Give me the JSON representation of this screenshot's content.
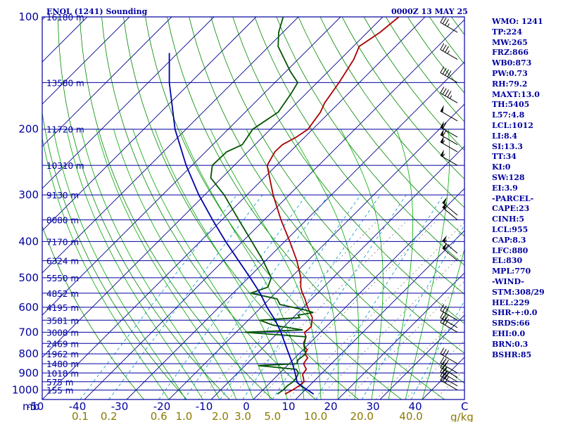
{
  "header": {
    "station": "ENOL (1241) Sounding",
    "time": "0000Z 13 MAY 25"
  },
  "indices": [
    "WMO: 1241",
    "TP:224",
    "MW:265",
    "FRZ:866",
    "WB0:873",
    "PW:0.73",
    "RH:79.2",
    "MAXT:13.0",
    "TH:5405",
    "L57:4.8",
    "LCL:1012",
    "LI:8.4",
    "SI:13.3",
    "TT:34",
    "KI:0",
    "SW:128",
    "EI:3.9",
    "-PARCEL-",
    "CAPE:23",
    "CINH:5",
    "LCL:955",
    "CAP:8.3",
    "LFC:880",
    "EL:830",
    "MPL:770",
    "-WIND-",
    "STM:308/29",
    "HEL:229",
    "SHR-+:0.0",
    "SRDS:66",
    "EHI:0.0",
    "BRN:0.3",
    "BSHR:85"
  ],
  "chart_data": {
    "type": "line",
    "title": "ENOL (1241) Sounding",
    "subtitle": "0000Z 13 MAY 25",
    "x_unit_label": "C",
    "y_unit_label": "mb",
    "mixing_unit_label": "g/kg",
    "pressure_ticks": [
      {
        "p": 100,
        "label": "100"
      },
      {
        "p": 200,
        "label": "200"
      },
      {
        "p": 300,
        "label": "300"
      },
      {
        "p": 400,
        "label": "400"
      },
      {
        "p": 500,
        "label": "500"
      },
      {
        "p": 600,
        "label": "600"
      },
      {
        "p": 700,
        "label": "700"
      },
      {
        "p": 800,
        "label": "800"
      },
      {
        "p": 900,
        "label": "900"
      },
      {
        "p": 1000,
        "label": "1000"
      }
    ],
    "height_labels": [
      {
        "label": "16180 m",
        "p": 100
      },
      {
        "label": "13580 m",
        "p": 150
      },
      {
        "label": "11720 m",
        "p": 200
      },
      {
        "label": "10310 m",
        "p": 250
      },
      {
        "label": "9130 m",
        "p": 300
      },
      {
        "label": "8080 m",
        "p": 350
      },
      {
        "label": "7170 m",
        "p": 400
      },
      {
        "label": "6324 m",
        "p": 450
      },
      {
        "label": "5550 m",
        "p": 500
      },
      {
        "label": "4852 m",
        "p": 550
      },
      {
        "label": "4195 m",
        "p": 600
      },
      {
        "label": "3581 m",
        "p": 650
      },
      {
        "label": "3008 m",
        "p": 700
      },
      {
        "label": "2469 m",
        "p": 750
      },
      {
        "label": "1962 m",
        "p": 800
      },
      {
        "label": "1480 m",
        "p": 850
      },
      {
        "label": "1018 m",
        "p": 900
      },
      {
        "label": "575 m",
        "p": 950
      },
      {
        "label": "155 m",
        "p": 1000
      }
    ],
    "temp_ticks": [
      "-50",
      "-40",
      "-30",
      "-20",
      "-10",
      "0",
      "10",
      "20",
      "30",
      "40"
    ],
    "temp_values": [
      -50,
      -40,
      -30,
      -20,
      -10,
      0,
      10,
      20,
      30,
      40
    ],
    "mixing_ratio_ticks": [
      "0.1",
      "0.2",
      "0.6",
      "1.0",
      "2.0",
      "3.0",
      "5.0",
      "10.0",
      "20.0",
      "40.0"
    ],
    "mixing_ratio_values": [
      0.1,
      0.2,
      0.6,
      1.0,
      2.0,
      3.0,
      5.0,
      10.0,
      20.0,
      40.0
    ],
    "xlim": [
      -50,
      50
    ],
    "ylim": [
      1050,
      100
    ],
    "series": [
      {
        "role": "temperature",
        "color": "#aa0000",
        "points": [
          {
            "p": 1025,
            "t": 6.2
          },
          {
            "p": 1000,
            "t": 7.0
          },
          {
            "p": 975,
            "t": 7.6
          },
          {
            "p": 950,
            "t": 7.8
          },
          {
            "p": 925,
            "t": 6.6
          },
          {
            "p": 910,
            "t": 5.8
          },
          {
            "p": 900,
            "t": 5.6
          },
          {
            "p": 880,
            "t": 5.4
          },
          {
            "p": 850,
            "t": 3.4
          },
          {
            "p": 820,
            "t": 3.0
          },
          {
            "p": 800,
            "t": 1.4
          },
          {
            "p": 780,
            "t": 1.0
          },
          {
            "p": 770,
            "t": 0.0
          },
          {
            "p": 750,
            "t": -1.4
          },
          {
            "p": 720,
            "t": -2.4
          },
          {
            "p": 700,
            "t": -3.8
          },
          {
            "p": 690,
            "t": -3.6
          },
          {
            "p": 675,
            "t": -3.6
          },
          {
            "p": 660,
            "t": -4.4
          },
          {
            "p": 640,
            "t": -5.4
          },
          {
            "p": 620,
            "t": -7.2
          },
          {
            "p": 600,
            "t": -9.0
          },
          {
            "p": 570,
            "t": -11.6
          },
          {
            "p": 550,
            "t": -13.6
          },
          {
            "p": 530,
            "t": -15.4
          },
          {
            "p": 500,
            "t": -17.6
          },
          {
            "p": 450,
            "t": -22.6
          },
          {
            "p": 400,
            "t": -28.8
          },
          {
            "p": 350,
            "t": -36.0
          },
          {
            "p": 300,
            "t": -43.8
          },
          {
            "p": 260,
            "t": -50.4
          },
          {
            "p": 250,
            "t": -52.2
          },
          {
            "p": 230,
            "t": -53.6
          },
          {
            "p": 220,
            "t": -53.5
          },
          {
            "p": 210,
            "t": -52.0
          },
          {
            "p": 200,
            "t": -51.1
          },
          {
            "p": 180,
            "t": -52.2
          },
          {
            "p": 170,
            "t": -53.4
          },
          {
            "p": 150,
            "t": -54.8
          },
          {
            "p": 130,
            "t": -56.8
          },
          {
            "p": 120,
            "t": -58.6
          },
          {
            "p": 110,
            "t": -57.0
          },
          {
            "p": 100,
            "t": -56.2
          }
        ]
      },
      {
        "role": "dewpoint",
        "color": "#005500",
        "points": [
          {
            "p": 1025,
            "t": 4.4
          },
          {
            "p": 1000,
            "t": 4.8
          },
          {
            "p": 975,
            "t": 4.8
          },
          {
            "p": 950,
            "t": 5.2
          },
          {
            "p": 925,
            "t": 5.0
          },
          {
            "p": 900,
            "t": 4.4
          },
          {
            "p": 880,
            "t": 3.0
          },
          {
            "p": 860,
            "t": -6.8
          },
          {
            "p": 850,
            "t": 1.8
          },
          {
            "p": 830,
            "t": 1.2
          },
          {
            "p": 800,
            "t": 1.6
          },
          {
            "p": 780,
            "t": 0.4
          },
          {
            "p": 760,
            "t": -0.8
          },
          {
            "p": 740,
            "t": -1.6
          },
          {
            "p": 720,
            "t": -2.4
          },
          {
            "p": 700,
            "t": -18.0
          },
          {
            "p": 690,
            "t": -4.8
          },
          {
            "p": 670,
            "t": -13.0
          },
          {
            "p": 650,
            "t": -17.2
          },
          {
            "p": 640,
            "t": -8.4
          },
          {
            "p": 630,
            "t": -9.4
          },
          {
            "p": 620,
            "t": -6.4
          },
          {
            "p": 610,
            "t": -9.0
          },
          {
            "p": 590,
            "t": -16.2
          },
          {
            "p": 570,
            "t": -18.2
          },
          {
            "p": 550,
            "t": -25.8
          },
          {
            "p": 530,
            "t": -23.2
          },
          {
            "p": 500,
            "t": -24.6
          },
          {
            "p": 450,
            "t": -30.6
          },
          {
            "p": 400,
            "t": -37.8
          },
          {
            "p": 350,
            "t": -46.0
          },
          {
            "p": 300,
            "t": -55.4
          },
          {
            "p": 270,
            "t": -62.6
          },
          {
            "p": 250,
            "t": -65.2
          },
          {
            "p": 230,
            "t": -65.0
          },
          {
            "p": 220,
            "t": -63.0
          },
          {
            "p": 200,
            "t": -64.2
          },
          {
            "p": 180,
            "t": -62.2
          },
          {
            "p": 160,
            "t": -63.6
          },
          {
            "p": 150,
            "t": -64.6
          },
          {
            "p": 140,
            "t": -69.0
          },
          {
            "p": 120,
            "t": -77.8
          },
          {
            "p": 110,
            "t": -81.0
          },
          {
            "p": 100,
            "t": -83.6
          }
        ]
      },
      {
        "role": "parcel",
        "color": "#0000aa",
        "points": [
          {
            "p": 1025,
            "t": 13.0
          },
          {
            "p": 1000,
            "t": 10.6
          },
          {
            "p": 975,
            "t": 8.2
          },
          {
            "p": 955,
            "t": 6.4
          },
          {
            "p": 900,
            "t": 3.6
          },
          {
            "p": 850,
            "t": 0.8
          },
          {
            "p": 800,
            "t": -2.4
          },
          {
            "p": 750,
            "t": -5.8
          },
          {
            "p": 700,
            "t": -9.4
          },
          {
            "p": 650,
            "t": -13.6
          },
          {
            "p": 600,
            "t": -18.6
          },
          {
            "p": 550,
            "t": -23.6
          },
          {
            "p": 500,
            "t": -29.6
          },
          {
            "p": 450,
            "t": -36.4
          },
          {
            "p": 400,
            "t": -44.0
          },
          {
            "p": 350,
            "t": -52.2
          },
          {
            "p": 300,
            "t": -61.4
          },
          {
            "p": 250,
            "t": -71.4
          },
          {
            "p": 200,
            "t": -82.6
          },
          {
            "p": 150,
            "t": -95.0
          },
          {
            "p": 125,
            "t": -102.0
          }
        ]
      }
    ],
    "wind_barbs": [
      {
        "p": 1000,
        "dir": 300,
        "spd": 30
      },
      {
        "p": 975,
        "dir": 300,
        "spd": 30
      },
      {
        "p": 950,
        "dir": 300,
        "spd": 25
      },
      {
        "p": 925,
        "dir": 300,
        "spd": 25
      },
      {
        "p": 900,
        "dir": 300,
        "spd": 30
      },
      {
        "p": 850,
        "dir": 300,
        "spd": 30
      },
      {
        "p": 700,
        "dir": 300,
        "spd": 30
      },
      {
        "p": 680,
        "dir": 300,
        "spd": 30
      },
      {
        "p": 650,
        "dir": 300,
        "spd": 30
      },
      {
        "p": 450,
        "dir": 310,
        "spd": 60
      },
      {
        "p": 430,
        "dir": 310,
        "spd": 55
      },
      {
        "p": 350,
        "dir": 310,
        "spd": 55
      },
      {
        "p": 340,
        "dir": 310,
        "spd": 50
      },
      {
        "p": 250,
        "dir": 300,
        "spd": 55
      },
      {
        "p": 230,
        "dir": 300,
        "spd": 55
      },
      {
        "p": 220,
        "dir": 300,
        "spd": 60
      },
      {
        "p": 210,
        "dir": 300,
        "spd": 60
      },
      {
        "p": 190,
        "dir": 300,
        "spd": 50
      },
      {
        "p": 170,
        "dir": 300,
        "spd": 45
      },
      {
        "p": 150,
        "dir": 300,
        "spd": 40
      },
      {
        "p": 130,
        "dir": 300,
        "spd": 35
      },
      {
        "p": 110,
        "dir": 300,
        "spd": 35
      }
    ],
    "colors": {
      "border": "#0000a0",
      "isobar": "#0000a0",
      "isotherm": "#000090",
      "dry_adiabat": "#008800",
      "moist_adiabat": "#00aa00",
      "mixing_ratio": "#1a9ecc",
      "dotted_aux": "#555555",
      "temperature": "#aa0000",
      "dewpoint": "#005500",
      "parcel": "#0000aa"
    }
  }
}
